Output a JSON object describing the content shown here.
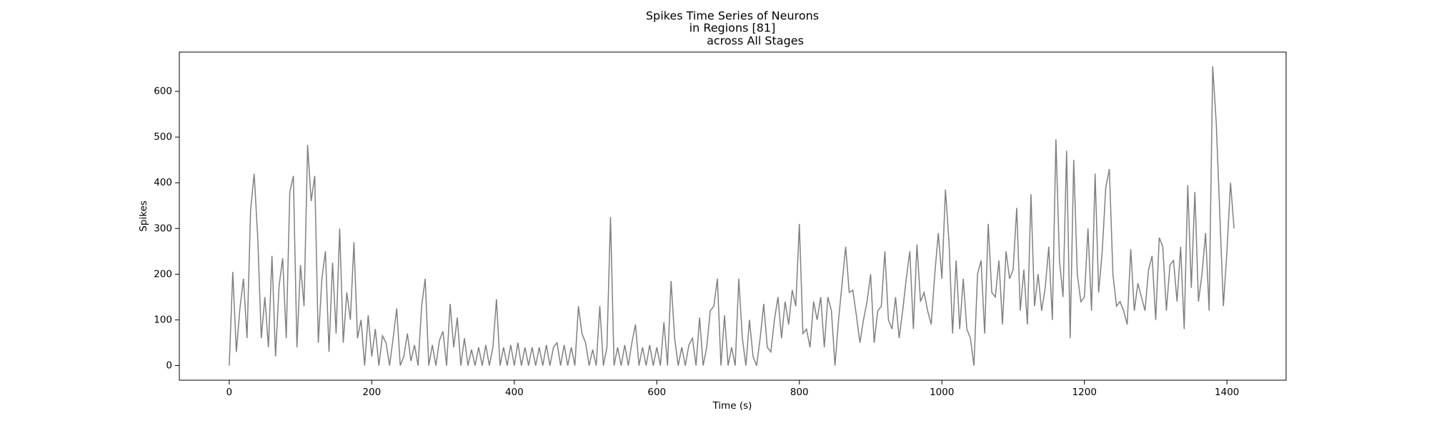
{
  "chart_data": {
    "type": "line",
    "title_lines": [
      "Spikes Time Series of Neurons",
      "in Regions [81]",
      "across All Stages"
    ],
    "xlabel": "Time (s)",
    "ylabel": "Spikes",
    "xlim": [
      -70,
      1483
    ],
    "ylim": [
      -32,
      686
    ],
    "xticks": [
      0,
      200,
      400,
      600,
      800,
      1000,
      1200,
      1400
    ],
    "yticks": [
      0,
      100,
      200,
      300,
      400,
      500,
      600
    ],
    "grid": false,
    "x": [
      0,
      5,
      10,
      15,
      20,
      25,
      30,
      35,
      40,
      45,
      50,
      55,
      60,
      65,
      70,
      75,
      80,
      85,
      90,
      95,
      100,
      105,
      110,
      115,
      120,
      125,
      130,
      135,
      140,
      145,
      150,
      155,
      160,
      165,
      170,
      175,
      180,
      185,
      190,
      195,
      200,
      205,
      210,
      215,
      220,
      225,
      230,
      235,
      240,
      245,
      250,
      255,
      260,
      265,
      270,
      275,
      280,
      285,
      290,
      295,
      300,
      305,
      310,
      315,
      320,
      325,
      330,
      335,
      340,
      345,
      350,
      355,
      360,
      365,
      370,
      375,
      380,
      385,
      390,
      395,
      400,
      405,
      410,
      415,
      420,
      425,
      430,
      435,
      440,
      445,
      450,
      455,
      460,
      465,
      470,
      475,
      480,
      485,
      490,
      495,
      500,
      505,
      510,
      515,
      520,
      525,
      530,
      535,
      540,
      545,
      550,
      555,
      560,
      565,
      570,
      575,
      580,
      585,
      590,
      595,
      600,
      605,
      610,
      615,
      620,
      625,
      630,
      635,
      640,
      645,
      650,
      655,
      660,
      665,
      670,
      675,
      680,
      685,
      690,
      695,
      700,
      705,
      710,
      715,
      720,
      725,
      730,
      735,
      740,
      745,
      750,
      755,
      760,
      765,
      770,
      775,
      780,
      785,
      790,
      795,
      800,
      805,
      810,
      815,
      820,
      825,
      830,
      835,
      840,
      845,
      850,
      855,
      860,
      865,
      870,
      875,
      880,
      885,
      890,
      895,
      900,
      905,
      910,
      915,
      920,
      925,
      930,
      935,
      940,
      945,
      950,
      955,
      960,
      965,
      970,
      975,
      980,
      985,
      990,
      995,
      1000,
      1005,
      1010,
      1015,
      1020,
      1025,
      1030,
      1035,
      1040,
      1045,
      1050,
      1055,
      1060,
      1065,
      1070,
      1075,
      1080,
      1085,
      1090,
      1095,
      1100,
      1105,
      1110,
      1115,
      1120,
      1125,
      1130,
      1135,
      1140,
      1145,
      1150,
      1155,
      1160,
      1165,
      1170,
      1175,
      1180,
      1185,
      1190,
      1195,
      1200,
      1205,
      1210,
      1215,
      1220,
      1225,
      1230,
      1235,
      1240,
      1245,
      1250,
      1255,
      1260,
      1265,
      1270,
      1275,
      1280,
      1285,
      1290,
      1295,
      1300,
      1305,
      1310,
      1315,
      1320,
      1325,
      1330,
      1335,
      1340,
      1345,
      1350,
      1355,
      1360,
      1365,
      1370,
      1375,
      1380,
      1385,
      1390,
      1395,
      1400,
      1405,
      1410
    ],
    "series": [
      {
        "color": "#808080",
        "values": [
          0,
          205,
          30,
          125,
          190,
          60,
          340,
          420,
          280,
          60,
          150,
          40,
          240,
          20,
          175,
          235,
          60,
          380,
          415,
          40,
          220,
          130,
          483,
          360,
          415,
          50,
          190,
          250,
          30,
          225,
          70,
          300,
          50,
          160,
          100,
          270,
          60,
          100,
          0,
          110,
          20,
          80,
          0,
          65,
          50,
          0,
          60,
          125,
          0,
          20,
          70,
          10,
          45,
          0,
          130,
          190,
          0,
          45,
          0,
          55,
          75,
          0,
          135,
          40,
          105,
          0,
          60,
          0,
          35,
          0,
          40,
          0,
          45,
          0,
          40,
          145,
          0,
          40,
          0,
          45,
          0,
          50,
          0,
          40,
          0,
          40,
          0,
          40,
          0,
          45,
          0,
          40,
          50,
          0,
          45,
          0,
          40,
          0,
          130,
          70,
          50,
          0,
          35,
          0,
          130,
          0,
          40,
          325,
          0,
          40,
          0,
          45,
          0,
          50,
          90,
          0,
          40,
          0,
          45,
          0,
          40,
          0,
          95,
          0,
          185,
          60,
          0,
          40,
          0,
          45,
          60,
          0,
          105,
          0,
          40,
          120,
          130,
          190,
          0,
          110,
          0,
          40,
          0,
          190,
          60,
          0,
          100,
          20,
          0,
          60,
          135,
          40,
          30,
          100,
          150,
          60,
          140,
          90,
          165,
          130,
          310,
          70,
          80,
          40,
          140,
          100,
          150,
          40,
          150,
          120,
          0,
          100,
          180,
          260,
          160,
          165,
          110,
          50,
          100,
          140,
          200,
          50,
          120,
          130,
          250,
          100,
          80,
          150,
          60,
          120,
          190,
          250,
          80,
          265,
          140,
          160,
          120,
          90,
          200,
          290,
          190,
          385,
          270,
          70,
          230,
          80,
          190,
          80,
          60,
          0,
          200,
          230,
          70,
          310,
          160,
          150,
          230,
          90,
          250,
          190,
          210,
          345,
          120,
          210,
          90,
          375,
          130,
          200,
          120,
          170,
          260,
          100,
          495,
          230,
          150,
          470,
          60,
          450,
          200,
          140,
          150,
          300,
          120,
          420,
          160,
          250,
          390,
          430,
          200,
          130,
          140,
          120,
          90,
          255,
          120,
          180,
          150,
          120,
          210,
          240,
          100,
          280,
          260,
          120,
          220,
          230,
          140,
          260,
          80,
          395,
          170,
          380,
          140,
          200,
          290,
          120,
          655,
          530,
          330,
          130,
          250,
          400,
          300
        ]
      }
    ]
  }
}
